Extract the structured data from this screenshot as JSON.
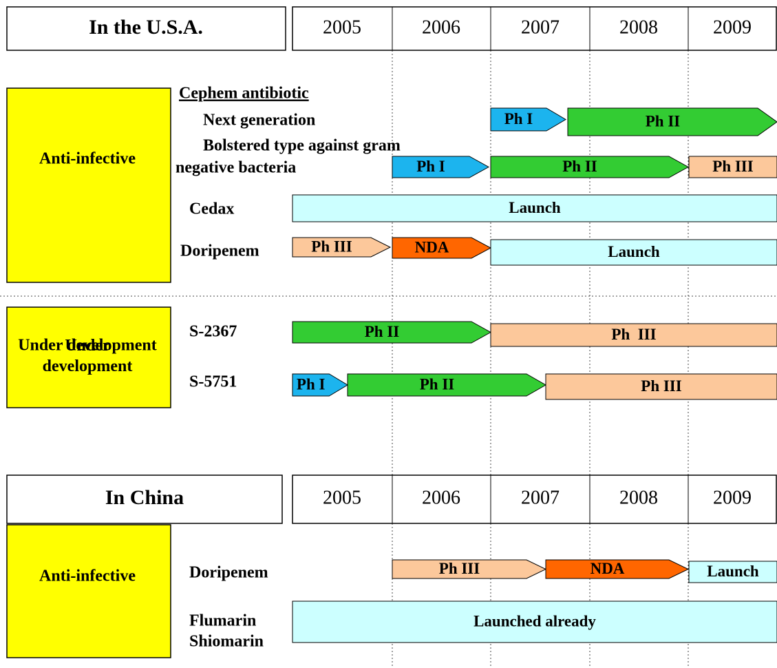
{
  "usa": {
    "title": "In the U.S.A.",
    "years": [
      2005,
      2006,
      2007,
      2008,
      2009
    ],
    "groups": [
      {
        "label": "Anti-infective",
        "items": [
          {
            "labels": [
              "Cephem antibiotic"
            ]
          },
          {
            "labels": [
              "Next generation"
            ],
            "bars": [
              "Ph I",
              "Ph II"
            ]
          },
          {
            "labels": [
              "Bolstered type against gram",
              "negative bacteria"
            ],
            "bars": [
              "Ph I",
              "Ph II",
              "Ph III"
            ]
          },
          {
            "labels": [
              "Cedax"
            ],
            "bars": [
              "Launch"
            ]
          },
          {
            "labels": [
              "Doripenem"
            ],
            "bars": [
              "Ph III",
              "NDA",
              "Launch"
            ]
          }
        ]
      },
      {
        "label": "Under development",
        "items": [
          {
            "labels": [
              "S-2367"
            ],
            "bars": [
              "Ph II",
              "Ph  III"
            ]
          },
          {
            "labels": [
              "S-5751"
            ],
            "bars": [
              "Ph I",
              "Ph II",
              "Ph III"
            ]
          }
        ]
      }
    ]
  },
  "china": {
    "title": "In China",
    "years": [
      2005,
      2006,
      2007,
      2008,
      2009
    ],
    "groups": [
      {
        "label": "Anti-infective",
        "items": [
          {
            "labels": [
              "Doripenem"
            ],
            "bars": [
              "Ph III",
              "NDA",
              "Launch"
            ]
          },
          {
            "labels": [
              "Flumarin",
              "Shiomarin"
            ],
            "bars": [
              "Launched already"
            ]
          }
        ]
      }
    ]
  }
}
